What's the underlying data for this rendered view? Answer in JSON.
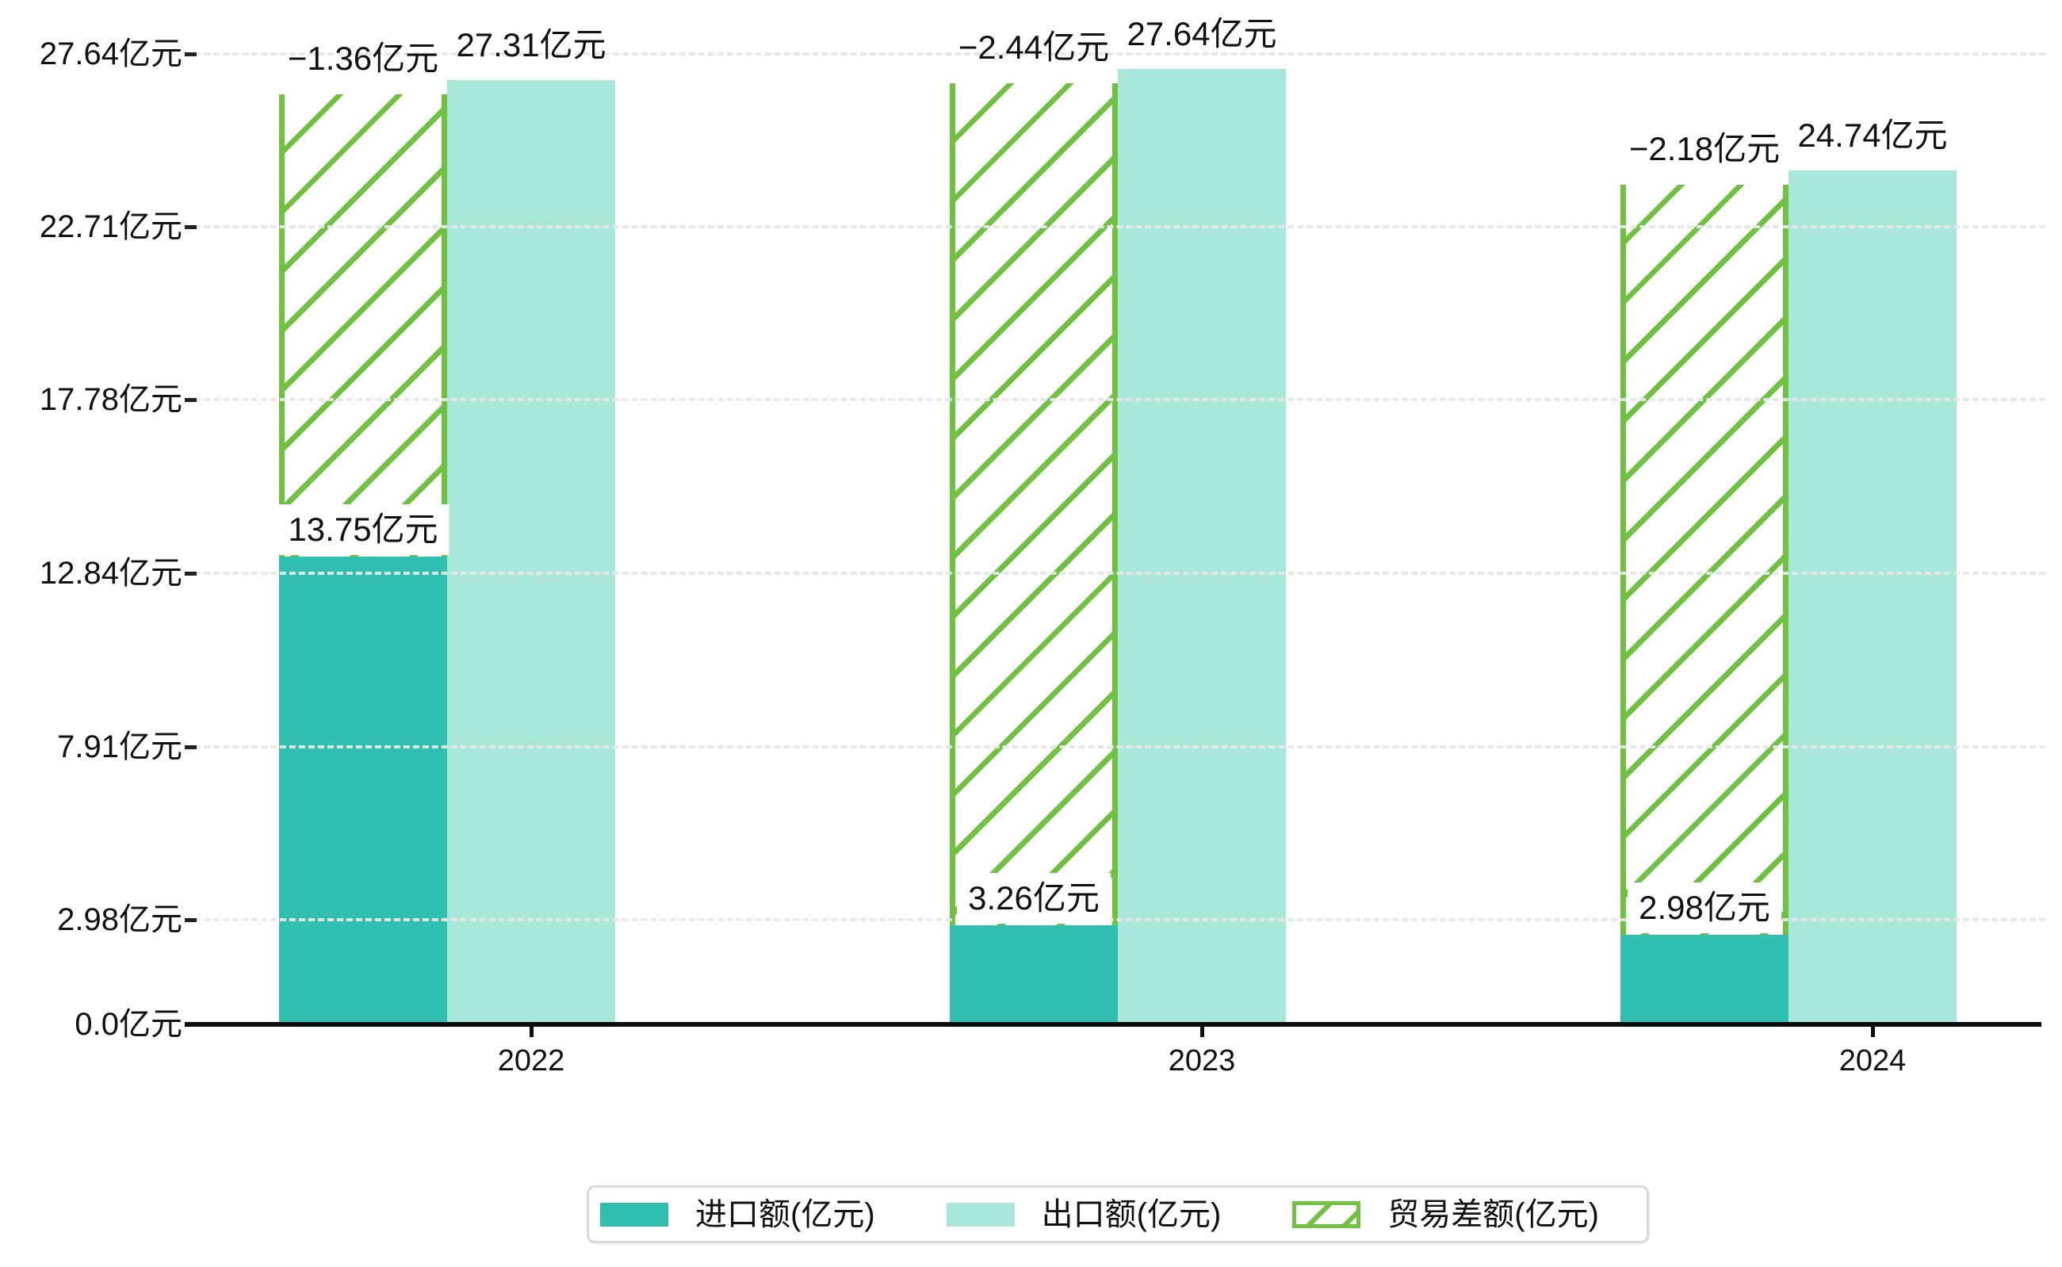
{
  "chart_data": {
    "type": "bar",
    "categories": [
      "2022",
      "2023",
      "2024"
    ],
    "series": [
      {
        "name": "进口额(亿元)",
        "role": "import",
        "style": "solid",
        "color": "#31bfb0",
        "values": [
          13.75,
          3.26,
          2.98
        ],
        "labels": [
          "13.75亿元",
          "3.26亿元",
          "2.98亿元"
        ]
      },
      {
        "name": "出口额(亿元)",
        "role": "export",
        "style": "solid",
        "color": "#aae7db",
        "values": [
          27.31,
          27.64,
          24.74
        ],
        "labels": [
          "27.31亿元",
          "27.64亿元",
          "24.74亿元"
        ]
      },
      {
        "name": "贸易差额(亿元)",
        "role": "trade-difference",
        "style": "hatched",
        "color": "#70c142",
        "values": [
          -1.36,
          -2.44,
          -2.18
        ],
        "labels": [
          "−1.36亿元",
          "−2.44亿元",
          "−2.18亿元"
        ],
        "bar_note": "hatched bar drawn stacked from top of import bar up to export level"
      }
    ],
    "yticks": [
      {
        "value": 0.0,
        "label": "0.0亿元"
      },
      {
        "value": 2.98,
        "label": "2.98亿元"
      },
      {
        "value": 7.91,
        "label": "7.91亿元"
      },
      {
        "value": 12.84,
        "label": "12.84亿元"
      },
      {
        "value": 17.78,
        "label": "17.78亿元"
      },
      {
        "value": 22.71,
        "label": "22.71亿元"
      },
      {
        "value": 27.64,
        "label": "27.64亿元"
      }
    ],
    "ylim": [
      0,
      29
    ],
    "xlabel": "",
    "ylabel": "",
    "title": "",
    "grid": "dashed-horizontal",
    "legend_position": "bottom-center"
  },
  "colors": {
    "axis_line": "#0d0d0d",
    "text": "#111111",
    "gridline": "#e6eae8",
    "legend_border": "#d8d8d8",
    "label_box_bg": "#ffffff"
  }
}
